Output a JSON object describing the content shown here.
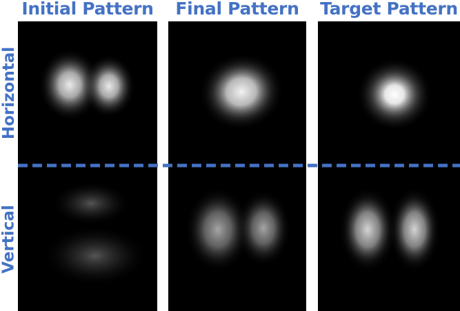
{
  "columns": [
    {
      "title": "Initial Pattern"
    },
    {
      "title": "Final Pattern"
    },
    {
      "title": "Target Pattern"
    }
  ],
  "rows": [
    {
      "label": "Horizontal"
    },
    {
      "label": "Vertical"
    }
  ],
  "colors": {
    "accent": "#4472c4",
    "panel_background": "#000000",
    "divider": "#4472c4"
  }
}
